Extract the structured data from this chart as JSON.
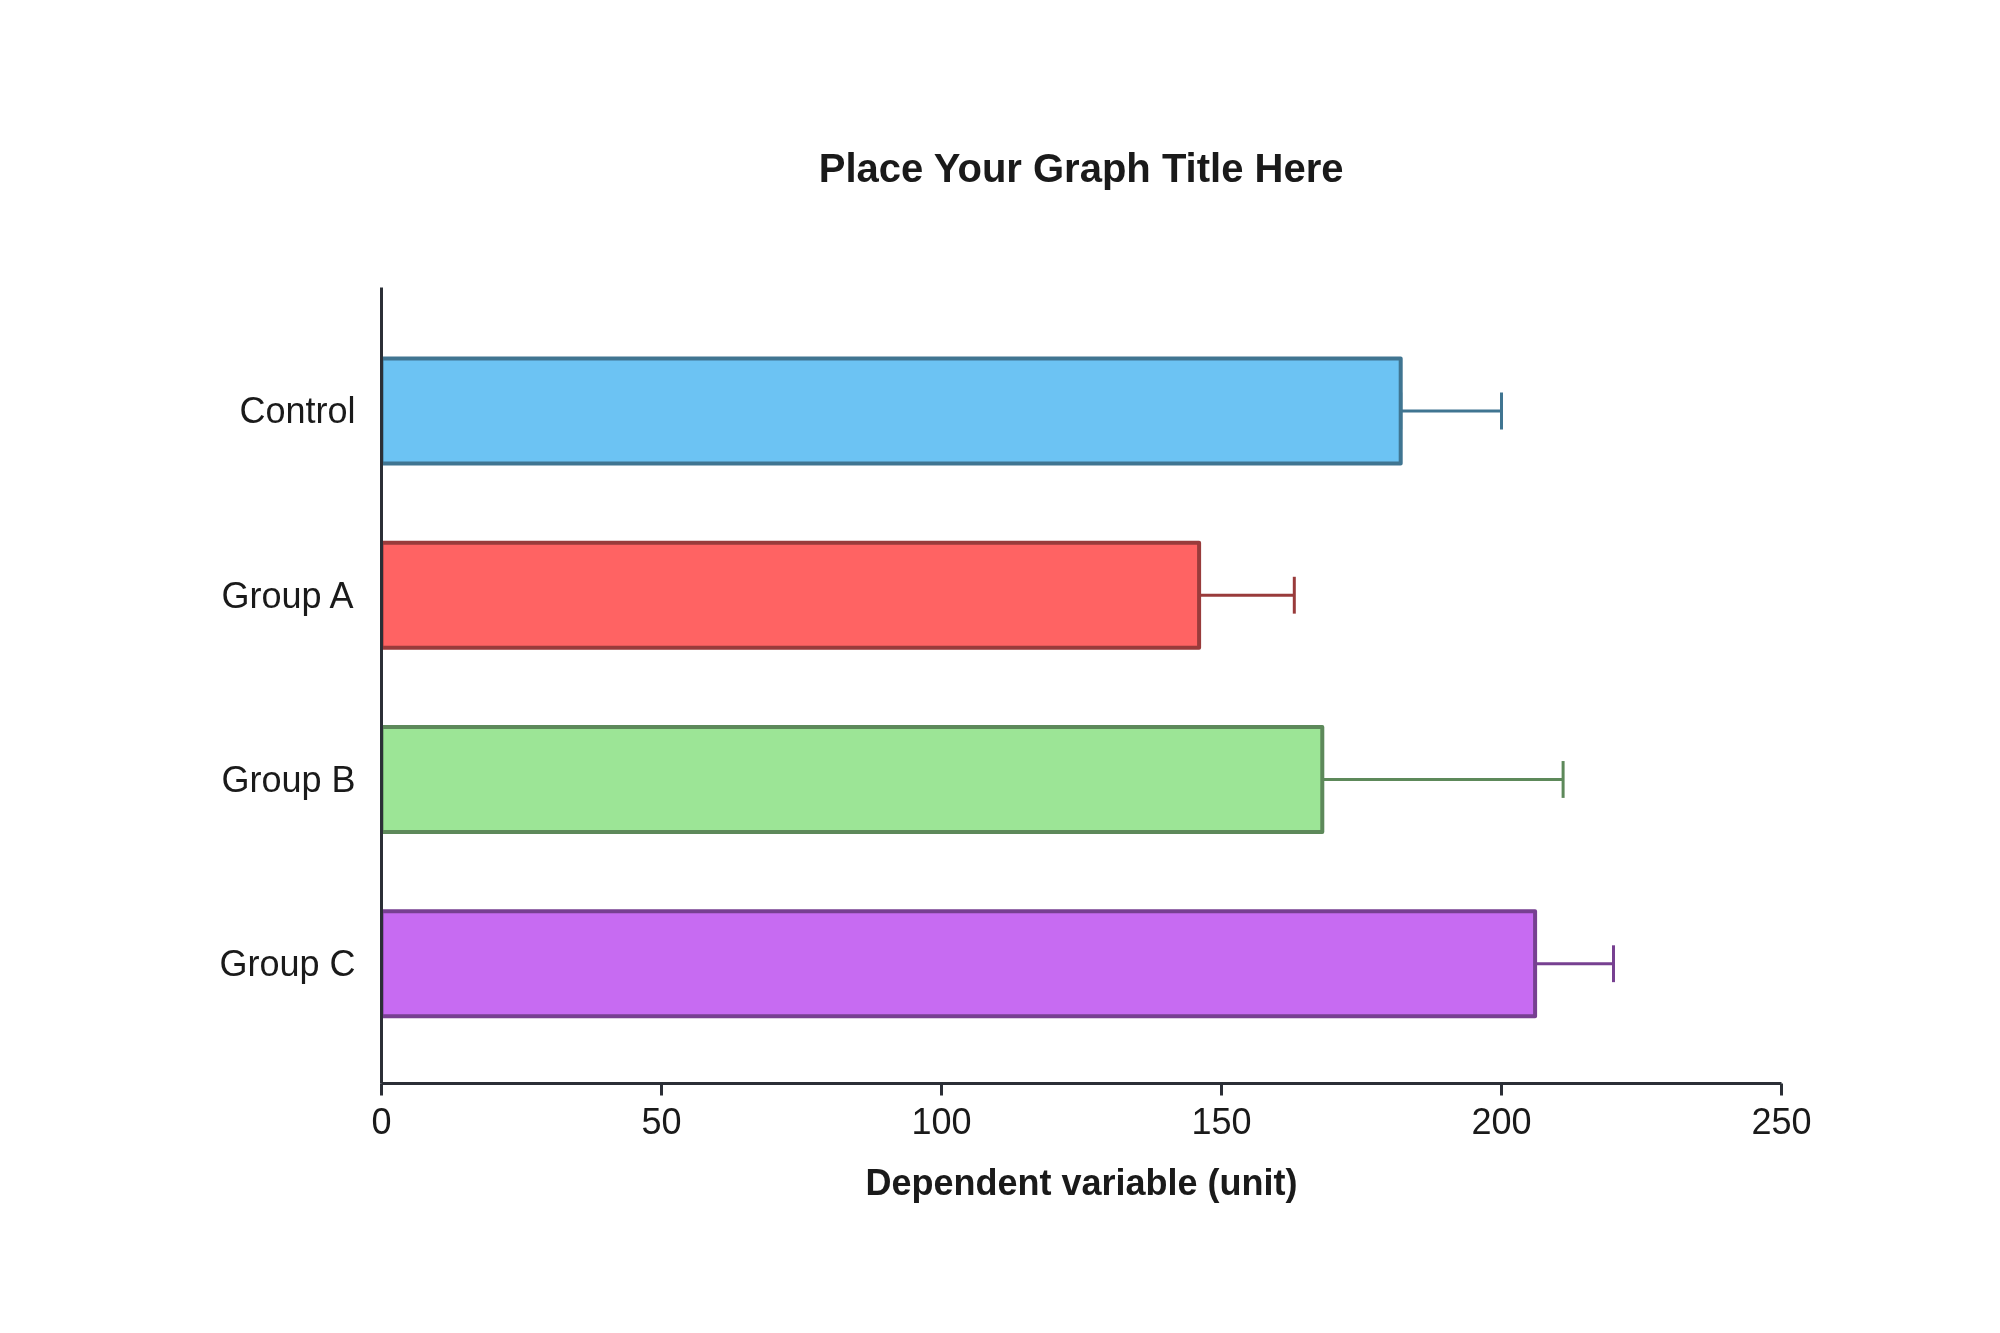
{
  "chart_data": {
    "type": "bar",
    "orientation": "horizontal",
    "title": "Place Your Graph Title Here",
    "xlabel": "Dependent variable (unit)",
    "categories": [
      "Control",
      "Group A",
      "Group B",
      "Group C"
    ],
    "values": [
      182,
      146,
      168,
      206
    ],
    "errors": [
      [
        182,
        200
      ],
      [
        146,
        163
      ],
      [
        168,
        211
      ],
      [
        206,
        220
      ]
    ],
    "colors": [
      "#6cc3f3",
      "#ff6363",
      "#9ce596",
      "#c76bf2"
    ],
    "xlim": [
      0,
      250
    ],
    "xticks": [
      0,
      50,
      100,
      150,
      200,
      250
    ],
    "grid": false
  }
}
